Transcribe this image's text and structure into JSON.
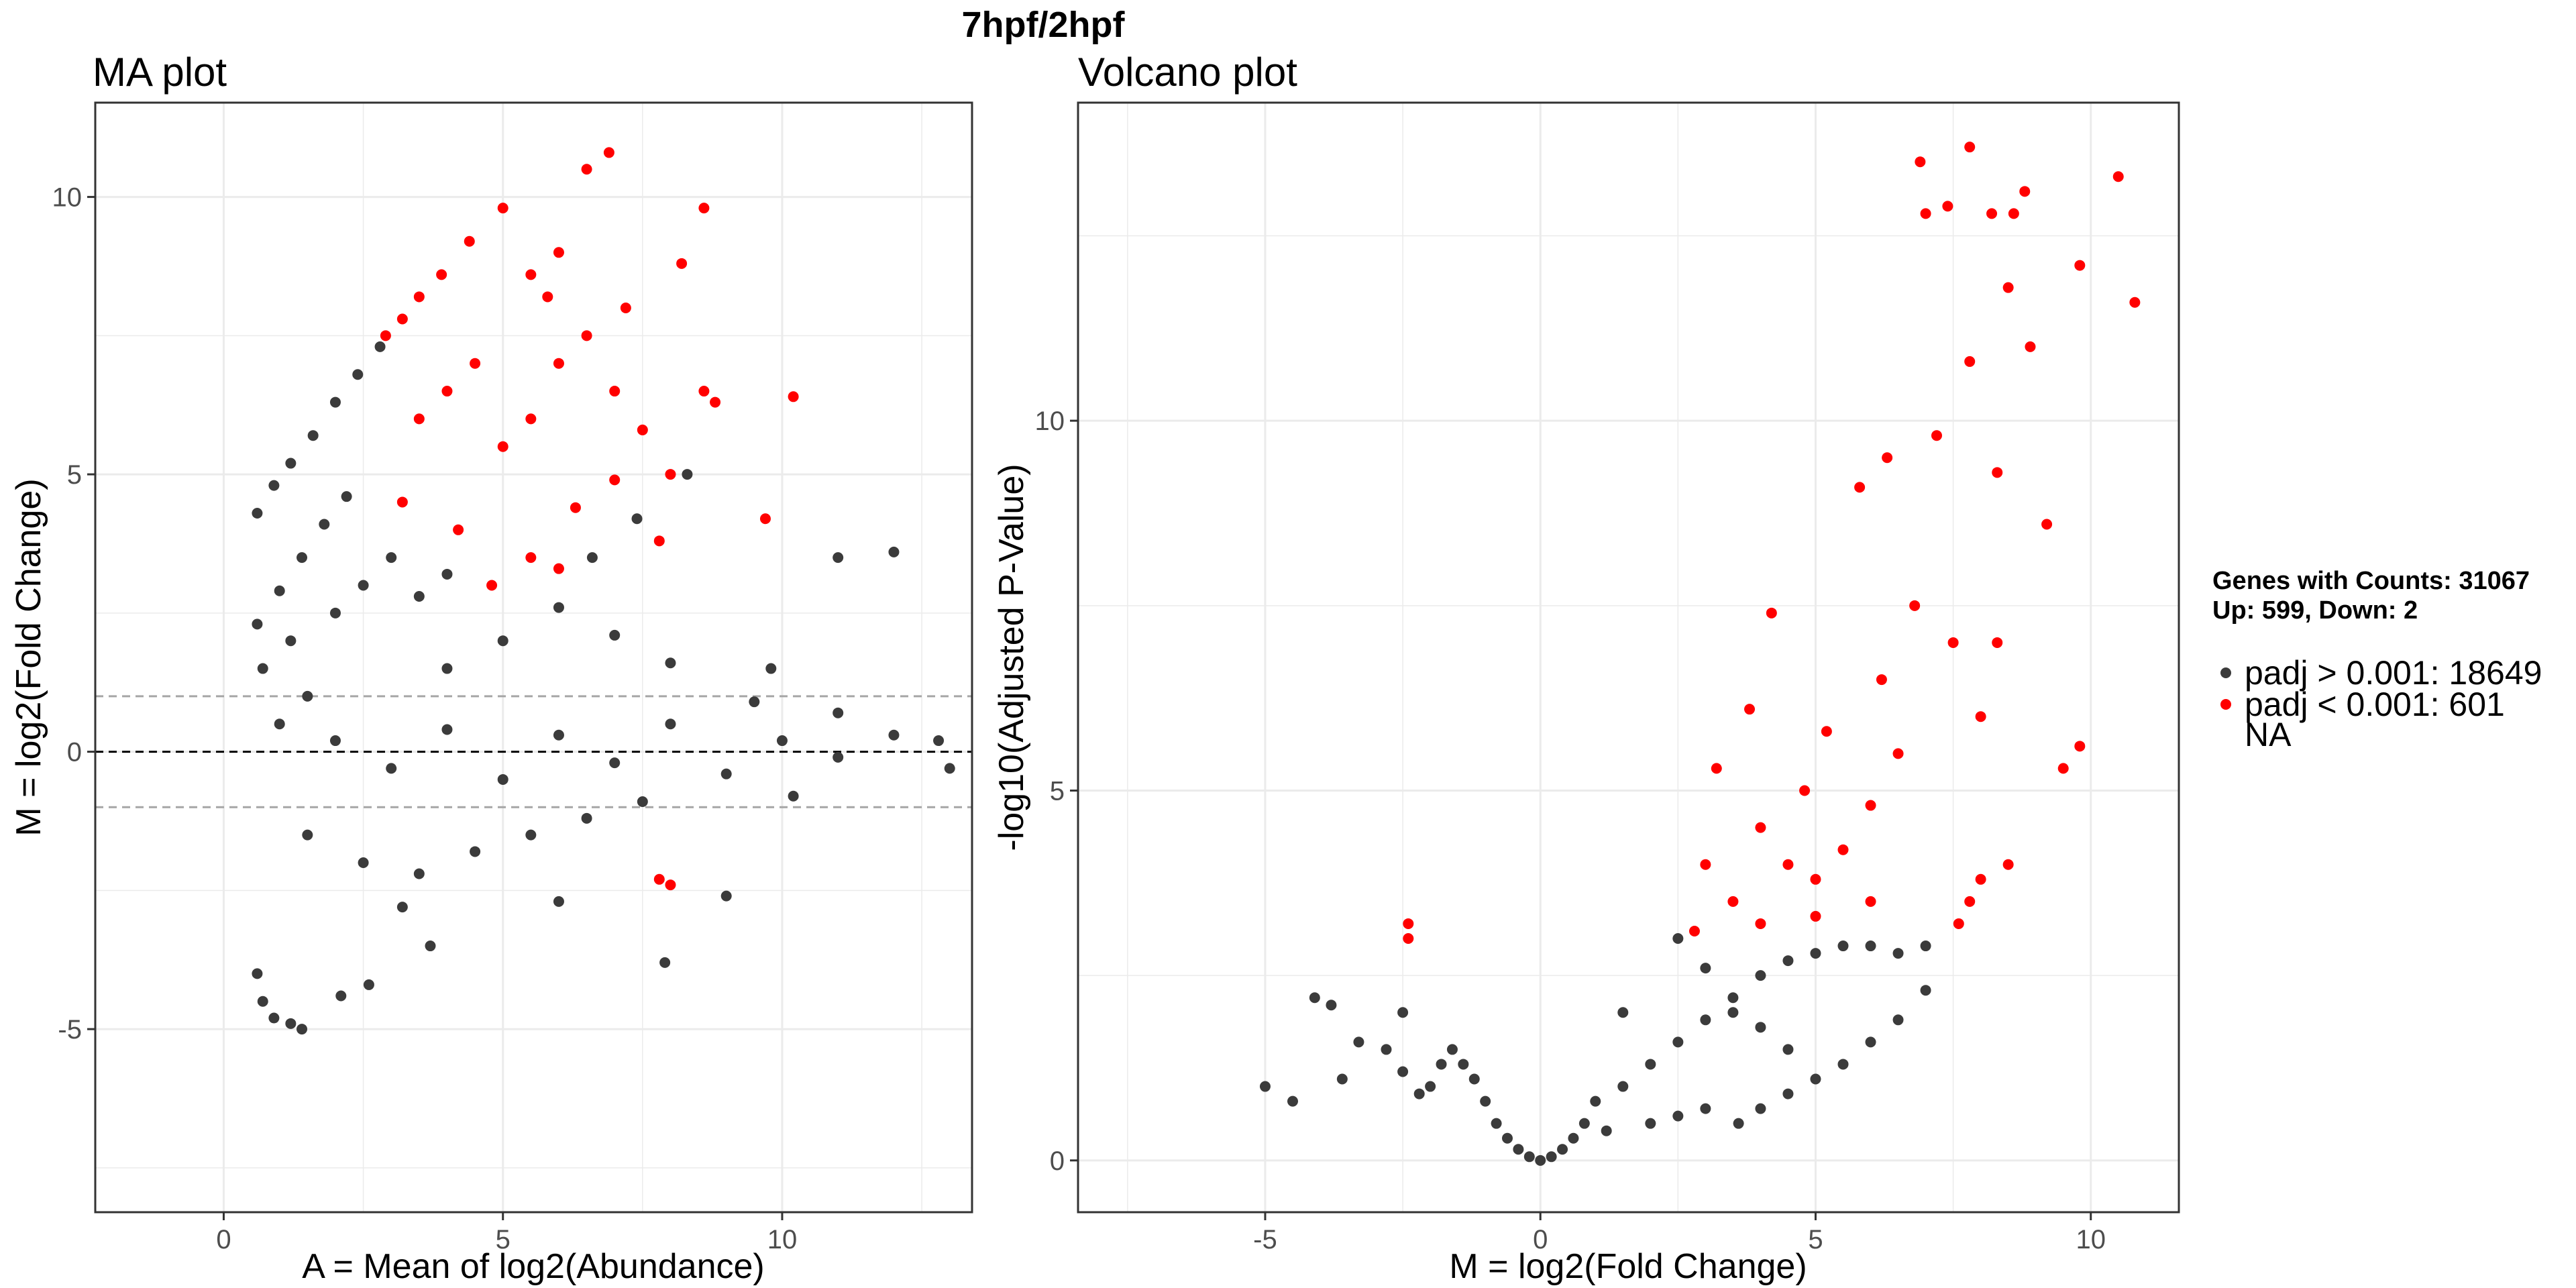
{
  "figure": {
    "title": "7hpf/2hpf"
  },
  "legend": {
    "header_line1": "Genes with Counts: 31067",
    "header_line2": "Up: 599, Down: 2",
    "items": [
      {
        "label": "padj > 0.001: 18649",
        "color": "#3b3b3b"
      },
      {
        "label": "padj < 0.001: 601",
        "color": "#ff0000"
      },
      {
        "label": "NA",
        "color": "none"
      }
    ]
  },
  "colors": {
    "not_significant": "#3b3b3b",
    "significant": "#ff0000",
    "grid": "#ebebeb",
    "panel_border": "#333333",
    "threshold_line": "#a6a6a6"
  },
  "chart_data": [
    {
      "type": "scatter",
      "title": "MA plot",
      "xlabel": "A = Mean of log2(Abundance)",
      "ylabel": "M = log2(Fold Change)",
      "xlim": [
        -2.3,
        13.4
      ],
      "ylim": [
        -8.3,
        11.7
      ],
      "xticks": [
        0,
        5,
        10
      ],
      "xtick_labels": [
        "0",
        "5",
        "10"
      ],
      "yticks": [
        -5,
        0,
        5,
        10
      ],
      "ytick_labels": [
        "-5",
        "0",
        "5",
        "10"
      ],
      "grid": true,
      "hlines": [
        {
          "y": 0,
          "style": "dashed",
          "color": "#000000"
        },
        {
          "y": 1,
          "style": "dashed",
          "color": "#a6a6a6"
        },
        {
          "y": -1,
          "style": "dashed",
          "color": "#a6a6a6"
        }
      ],
      "series": [
        {
          "name": "padj > 0.001: 18649",
          "color": "#3b3b3b",
          "points": [
            [
              0.6,
              4.3
            ],
            [
              0.9,
              4.8
            ],
            [
              1.2,
              5.2
            ],
            [
              1.6,
              5.7
            ],
            [
              2.0,
              6.3
            ],
            [
              2.4,
              6.8
            ],
            [
              2.8,
              7.3
            ],
            [
              0.6,
              2.3
            ],
            [
              1.0,
              2.9
            ],
            [
              1.4,
              3.5
            ],
            [
              1.8,
              4.1
            ],
            [
              2.2,
              4.6
            ],
            [
              0.7,
              1.5
            ],
            [
              1.2,
              2.0
            ],
            [
              1.5,
              1.0
            ],
            [
              2.0,
              2.5
            ],
            [
              2.5,
              3.0
            ],
            [
              3.0,
              3.5
            ],
            [
              3.5,
              2.8
            ],
            [
              4.0,
              3.2
            ],
            [
              1.0,
              0.5
            ],
            [
              2.0,
              0.2
            ],
            [
              3.0,
              -0.3
            ],
            [
              4.0,
              0.4
            ],
            [
              5.0,
              -0.5
            ],
            [
              6.0,
              0.3
            ],
            [
              7.0,
              -0.2
            ],
            [
              8.0,
              0.5
            ],
            [
              9.0,
              -0.4
            ],
            [
              10.0,
              0.2
            ],
            [
              11.0,
              -0.1
            ],
            [
              12.0,
              0.3
            ],
            [
              13.0,
              -0.3
            ],
            [
              12.8,
              0.2
            ],
            [
              1.5,
              -1.5
            ],
            [
              2.5,
              -2.0
            ],
            [
              3.5,
              -2.2
            ],
            [
              4.5,
              -1.8
            ],
            [
              5.5,
              -1.5
            ],
            [
              6.5,
              -1.2
            ],
            [
              7.5,
              -0.9
            ],
            [
              0.6,
              -4.0
            ],
            [
              0.7,
              -4.5
            ],
            [
              0.9,
              -4.8
            ],
            [
              1.2,
              -4.9
            ],
            [
              1.4,
              -5.0
            ],
            [
              2.1,
              -4.4
            ],
            [
              2.6,
              -4.2
            ],
            [
              3.2,
              -2.8
            ],
            [
              3.7,
              -3.5
            ],
            [
              6.0,
              -2.7
            ],
            [
              7.9,
              -3.8
            ],
            [
              9.0,
              -2.6
            ],
            [
              4.0,
              1.5
            ],
            [
              5.0,
              2.0
            ],
            [
              6.0,
              2.6
            ],
            [
              7.0,
              2.1
            ],
            [
              8.0,
              1.6
            ],
            [
              9.5,
              0.9
            ],
            [
              11.0,
              0.7
            ],
            [
              12.0,
              3.6
            ],
            [
              11.0,
              3.5
            ],
            [
              8.3,
              5.0
            ],
            [
              7.4,
              4.2
            ],
            [
              6.6,
              3.5
            ],
            [
              9.8,
              1.5
            ],
            [
              10.2,
              -0.8
            ]
          ]
        },
        {
          "name": "padj < 0.001: 601",
          "color": "#ff0000",
          "points": [
            [
              2.9,
              7.5
            ],
            [
              3.2,
              7.8
            ],
            [
              3.5,
              8.2
            ],
            [
              3.9,
              8.6
            ],
            [
              4.4,
              9.2
            ],
            [
              5.0,
              9.8
            ],
            [
              5.5,
              8.6
            ],
            [
              6.0,
              9.0
            ],
            [
              6.5,
              10.5
            ],
            [
              6.9,
              10.8
            ],
            [
              8.2,
              8.8
            ],
            [
              8.6,
              9.8
            ],
            [
              3.5,
              6.0
            ],
            [
              4.0,
              6.5
            ],
            [
              4.5,
              7.0
            ],
            [
              5.0,
              5.5
            ],
            [
              5.5,
              6.0
            ],
            [
              6.0,
              7.0
            ],
            [
              6.5,
              7.5
            ],
            [
              7.0,
              6.5
            ],
            [
              7.5,
              5.8
            ],
            [
              8.0,
              5.0
            ],
            [
              3.2,
              4.5
            ],
            [
              4.2,
              4.0
            ],
            [
              5.5,
              3.5
            ],
            [
              6.3,
              4.4
            ],
            [
              7.0,
              4.9
            ],
            [
              7.8,
              3.8
            ],
            [
              8.6,
              6.5
            ],
            [
              8.8,
              6.3
            ],
            [
              9.7,
              4.2
            ],
            [
              10.2,
              6.4
            ],
            [
              4.8,
              3.0
            ],
            [
              6.0,
              3.3
            ],
            [
              7.8,
              -2.3
            ],
            [
              8.0,
              -2.4
            ],
            [
              7.2,
              8.0
            ],
            [
              5.8,
              8.2
            ]
          ]
        }
      ]
    },
    {
      "type": "scatter",
      "title": "Volcano plot",
      "xlabel": "M = log2(Fold Change)",
      "ylabel": "-log10(Adjusted P-Value)",
      "xlim": [
        -8.4,
        11.6
      ],
      "ylim": [
        -0.7,
        14.3
      ],
      "xticks": [
        -5,
        0,
        5,
        10
      ],
      "xtick_labels": [
        "-5",
        "0",
        "5",
        "10"
      ],
      "yticks": [
        0,
        5,
        10
      ],
      "ytick_labels": [
        "0",
        "5",
        "10"
      ],
      "grid": true,
      "series": [
        {
          "name": "padj > 0.001: 18649",
          "color": "#3b3b3b",
          "points": [
            [
              0.0,
              0.0
            ],
            [
              -0.2,
              0.05
            ],
            [
              0.2,
              0.05
            ],
            [
              -0.4,
              0.15
            ],
            [
              0.4,
              0.15
            ],
            [
              -0.6,
              0.3
            ],
            [
              0.6,
              0.3
            ],
            [
              -0.8,
              0.5
            ],
            [
              0.8,
              0.5
            ],
            [
              -1.0,
              0.8
            ],
            [
              1.0,
              0.8
            ],
            [
              -1.2,
              1.1
            ],
            [
              -1.4,
              1.3
            ],
            [
              -1.6,
              1.5
            ],
            [
              -1.8,
              1.3
            ],
            [
              -2.0,
              1.0
            ],
            [
              -2.2,
              0.9
            ],
            [
              -2.5,
              1.2
            ],
            [
              -2.8,
              1.5
            ],
            [
              -3.3,
              1.6
            ],
            [
              -3.8,
              2.1
            ],
            [
              -4.1,
              2.2
            ],
            [
              -3.6,
              1.1
            ],
            [
              -4.5,
              0.8
            ],
            [
              -5.0,
              1.0
            ],
            [
              -2.5,
              2.0
            ],
            [
              1.5,
              1.0
            ],
            [
              2.0,
              1.3
            ],
            [
              2.5,
              1.6
            ],
            [
              3.0,
              1.9
            ],
            [
              3.5,
              2.2
            ],
            [
              4.0,
              2.5
            ],
            [
              4.5,
              2.7
            ],
            [
              5.0,
              2.8
            ],
            [
              5.5,
              2.9
            ],
            [
              6.0,
              2.9
            ],
            [
              6.5,
              2.8
            ],
            [
              7.0,
              2.9
            ],
            [
              1.5,
              2.0
            ],
            [
              2.5,
              3.0
            ],
            [
              3.0,
              2.6
            ],
            [
              3.5,
              2.0
            ],
            [
              4.0,
              1.8
            ],
            [
              4.5,
              1.5
            ],
            [
              3.6,
              0.5
            ],
            [
              4.0,
              0.7
            ],
            [
              4.5,
              0.9
            ],
            [
              5.0,
              1.1
            ],
            [
              5.5,
              1.3
            ],
            [
              6.0,
              1.6
            ],
            [
              6.5,
              1.9
            ],
            [
              7.0,
              2.3
            ],
            [
              2.0,
              0.5
            ],
            [
              2.5,
              0.6
            ],
            [
              3.0,
              0.7
            ],
            [
              1.2,
              0.4
            ]
          ]
        },
        {
          "name": "padj < 0.001: 601",
          "color": "#ff0000",
          "points": [
            [
              -2.4,
              3.2
            ],
            [
              -2.4,
              3.0
            ],
            [
              2.8,
              3.1
            ],
            [
              3.0,
              4.0
            ],
            [
              3.2,
              5.3
            ],
            [
              3.5,
              3.5
            ],
            [
              3.8,
              6.1
            ],
            [
              4.0,
              4.5
            ],
            [
              4.2,
              7.4
            ],
            [
              4.5,
              4.0
            ],
            [
              4.8,
              5.0
            ],
            [
              5.0,
              3.3
            ],
            [
              5.2,
              5.8
            ],
            [
              5.5,
              4.2
            ],
            [
              5.8,
              9.1
            ],
            [
              6.0,
              4.8
            ],
            [
              6.2,
              6.5
            ],
            [
              6.3,
              9.5
            ],
            [
              6.5,
              5.5
            ],
            [
              6.8,
              7.5
            ],
            [
              6.9,
              13.5
            ],
            [
              7.0,
              12.8
            ],
            [
              7.2,
              9.8
            ],
            [
              7.4,
              12.9
            ],
            [
              7.5,
              7.0
            ],
            [
              7.8,
              10.8
            ],
            [
              7.8,
              13.7
            ],
            [
              8.0,
              6.0
            ],
            [
              8.2,
              12.8
            ],
            [
              8.3,
              9.3
            ],
            [
              8.5,
              11.8
            ],
            [
              8.6,
              12.8
            ],
            [
              8.8,
              13.1
            ],
            [
              8.9,
              11.0
            ],
            [
              9.2,
              8.6
            ],
            [
              9.5,
              5.3
            ],
            [
              9.8,
              5.6
            ],
            [
              9.8,
              12.1
            ],
            [
              10.5,
              13.3
            ],
            [
              10.8,
              11.6
            ],
            [
              8.3,
              7.0
            ],
            [
              8.0,
              3.8
            ],
            [
              7.8,
              3.5
            ],
            [
              7.6,
              3.2
            ],
            [
              8.5,
              4.0
            ],
            [
              4.0,
              3.2
            ],
            [
              5.0,
              3.8
            ],
            [
              6.0,
              3.5
            ]
          ]
        }
      ]
    }
  ]
}
